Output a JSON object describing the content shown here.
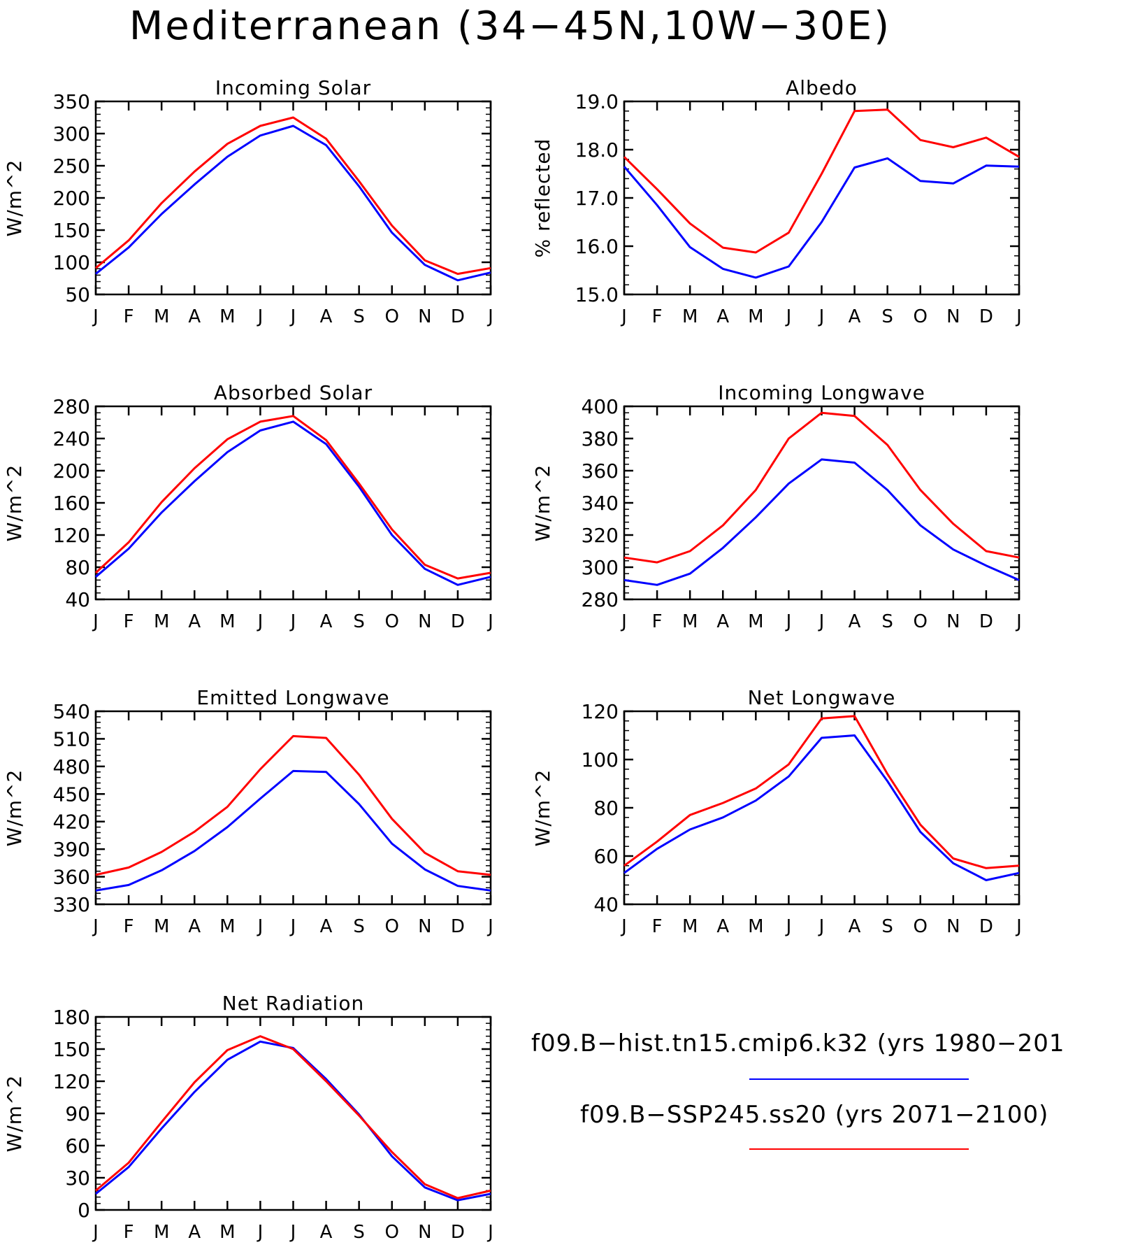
{
  "figure": {
    "title": "Mediterranean (34−45N,10W−30E)"
  },
  "legend": {
    "entries": [
      {
        "label": "f09.B−hist.tn15.cmip6.k32 (yrs 1980−201",
        "color": "#0000ff"
      },
      {
        "label": "f09.B−SSP245.ss20 (yrs 2071−2100)",
        "color": "#ff0000"
      }
    ]
  },
  "chart_data": [
    {
      "type": "line",
      "title": "Incoming Solar",
      "ylabel": "W/m^2",
      "categories": [
        "J",
        "F",
        "M",
        "A",
        "M",
        "J",
        "J",
        "A",
        "S",
        "O",
        "N",
        "D",
        "J"
      ],
      "ylim": [
        50,
        350
      ],
      "yticks": [
        "50",
        "100",
        "150",
        "200",
        "250",
        "300",
        "350"
      ],
      "series": [
        {
          "color": "#0000ff",
          "values": [
            82,
            123,
            175,
            221,
            264,
            297,
            312,
            282,
            218,
            146,
            96,
            72,
            84
          ]
        },
        {
          "color": "#ff0000",
          "values": [
            91,
            134,
            192,
            241,
            284,
            312,
            325,
            292,
            226,
            157,
            103,
            82,
            91
          ]
        }
      ]
    },
    {
      "type": "line",
      "title": "Albedo",
      "ylabel": "% reflected",
      "categories": [
        "J",
        "F",
        "M",
        "A",
        "M",
        "J",
        "J",
        "A",
        "S",
        "O",
        "N",
        "D",
        "J"
      ],
      "ylim": [
        15.0,
        19.0
      ],
      "yticks": [
        "15.0",
        "16.0",
        "17.0",
        "18.0",
        "19.0"
      ],
      "series": [
        {
          "color": "#0000ff",
          "values": [
            17.65,
            16.85,
            15.98,
            15.53,
            15.35,
            15.58,
            16.5,
            17.63,
            17.82,
            17.35,
            17.3,
            17.67,
            17.65
          ]
        },
        {
          "color": "#ff0000",
          "values": [
            17.85,
            17.18,
            16.47,
            15.97,
            15.87,
            16.28,
            17.5,
            18.8,
            18.83,
            18.2,
            18.05,
            18.25,
            17.85
          ]
        }
      ]
    },
    {
      "type": "line",
      "title": "Absorbed Solar",
      "ylabel": "W/m^2",
      "categories": [
        "J",
        "F",
        "M",
        "A",
        "M",
        "J",
        "J",
        "A",
        "S",
        "O",
        "N",
        "D",
        "J"
      ],
      "ylim": [
        40,
        280
      ],
      "yticks": [
        "40",
        "80",
        "120",
        "160",
        "200",
        "240",
        "280"
      ],
      "series": [
        {
          "color": "#0000ff",
          "values": [
            68,
            103,
            148,
            187,
            223,
            250,
            261,
            233,
            180,
            120,
            78,
            58,
            68
          ]
        },
        {
          "color": "#ff0000",
          "values": [
            73,
            111,
            161,
            203,
            239,
            261,
            268,
            238,
            184,
            127,
            83,
            66,
            73
          ]
        }
      ]
    },
    {
      "type": "line",
      "title": "Incoming Longwave",
      "ylabel": "W/m^2",
      "categories": [
        "J",
        "F",
        "M",
        "A",
        "M",
        "J",
        "J",
        "A",
        "S",
        "O",
        "N",
        "D",
        "J"
      ],
      "ylim": [
        280,
        400
      ],
      "yticks": [
        "280",
        "300",
        "320",
        "340",
        "360",
        "380",
        "400"
      ],
      "series": [
        {
          "color": "#0000ff",
          "values": [
            292,
            289,
            296,
            312,
            331,
            352,
            367,
            365,
            348,
            326,
            311,
            301,
            292
          ]
        },
        {
          "color": "#ff0000",
          "values": [
            306,
            303,
            310,
            326,
            348,
            380,
            396,
            394,
            376,
            348,
            327,
            310,
            306
          ]
        }
      ]
    },
    {
      "type": "line",
      "title": "Emitted Longwave",
      "ylabel": "W/m^2",
      "categories": [
        "J",
        "F",
        "M",
        "A",
        "M",
        "J",
        "J",
        "A",
        "S",
        "O",
        "N",
        "D",
        "J"
      ],
      "ylim": [
        330,
        540
      ],
      "yticks": [
        "330",
        "360",
        "390",
        "420",
        "450",
        "480",
        "510",
        "540"
      ],
      "series": [
        {
          "color": "#0000ff",
          "values": [
            345,
            351,
            367,
            388,
            414,
            445,
            475,
            474,
            439,
            396,
            368,
            350,
            345
          ]
        },
        {
          "color": "#ff0000",
          "values": [
            362,
            370,
            387,
            409,
            436,
            477,
            513,
            511,
            471,
            423,
            386,
            366,
            362
          ]
        }
      ]
    },
    {
      "type": "line",
      "title": "Net Longwave",
      "ylabel": "W/m^2",
      "categories": [
        "J",
        "F",
        "M",
        "A",
        "M",
        "J",
        "J",
        "A",
        "S",
        "O",
        "N",
        "D",
        "J"
      ],
      "ylim": [
        40,
        120
      ],
      "yticks": [
        "40",
        "60",
        "80",
        "100",
        "120"
      ],
      "series": [
        {
          "color": "#0000ff",
          "values": [
            53,
            63,
            71,
            76,
            83,
            93,
            109,
            110,
            91,
            70,
            57,
            50,
            53
          ]
        },
        {
          "color": "#ff0000",
          "values": [
            56,
            66,
            77,
            82,
            88,
            98,
            117,
            118,
            94,
            73,
            59,
            55,
            56
          ]
        }
      ]
    },
    {
      "type": "line",
      "title": "Net Radiation",
      "ylabel": "W/m^2",
      "categories": [
        "J",
        "F",
        "M",
        "A",
        "M",
        "J",
        "J",
        "A",
        "S",
        "O",
        "N",
        "D",
        "J"
      ],
      "ylim": [
        0,
        180
      ],
      "yticks": [
        "0",
        "30",
        "60",
        "90",
        "120",
        "150",
        "180"
      ],
      "series": [
        {
          "color": "#0000ff",
          "values": [
            15,
            40,
            76,
            110,
            140,
            157,
            151,
            122,
            89,
            50,
            21,
            9,
            15
          ]
        },
        {
          "color": "#ff0000",
          "values": [
            18,
            44,
            82,
            119,
            149,
            162,
            150,
            120,
            88,
            54,
            24,
            11,
            18
          ]
        }
      ]
    }
  ]
}
